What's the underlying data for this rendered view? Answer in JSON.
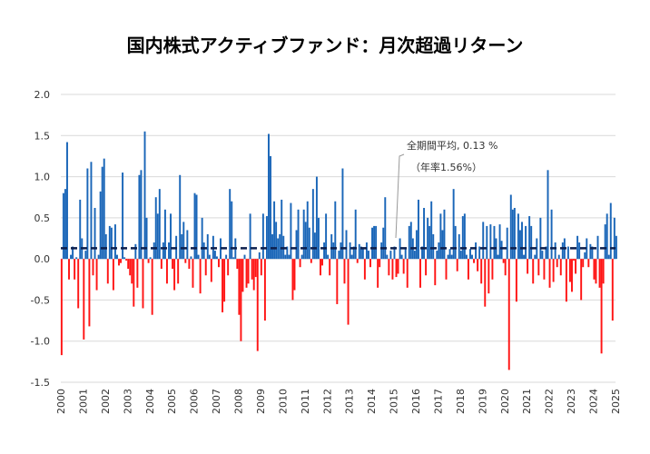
{
  "chart_data": {
    "type": "bar",
    "title": "国内株式アクティブファンド：月次超過リターン",
    "xlabel": "",
    "ylabel": "",
    "ylim": [
      -1.5,
      2.0
    ],
    "yticks": [
      "2.0",
      "1.5",
      "1.0",
      "0.5",
      "0.0",
      "-0.5",
      "-1.0",
      "-1.5"
    ],
    "xticks": [
      "2000",
      "2001",
      "2002",
      "2003",
      "2004",
      "2005",
      "2006",
      "2007",
      "2008",
      "2009",
      "2010",
      "2011",
      "2012",
      "2013",
      "2014",
      "2015",
      "2016",
      "2017",
      "2018",
      "2019",
      "2020",
      "2021",
      "2022",
      "2023",
      "2024",
      "2025"
    ],
    "grid": true,
    "frequency": "monthly",
    "colors": {
      "positive": "#1a66b8",
      "negative": "#ff1414",
      "average_line": "#0d1f4d"
    },
    "average": 0.13,
    "annotation": {
      "line1": "全期間平均, 0.13 %",
      "line2": "（年率1.56%）"
    },
    "monthly_by_year": [
      {
        "year": "2000",
        "values": [
          -1.17,
          0.8,
          0.85,
          1.42,
          -0.25,
          0.05,
          0.15,
          -0.25,
          0.02,
          -0.6,
          0.72,
          0.25
        ]
      },
      {
        "year": "2001",
        "values": [
          -0.98,
          0.1,
          1.1,
          -0.82,
          1.18,
          -0.2,
          0.62,
          -0.38,
          0.05,
          0.82,
          1.12,
          1.22
        ]
      },
      {
        "year": "2002",
        "values": [
          0.3,
          -0.3,
          0.4,
          0.38,
          -0.38,
          0.42,
          0.05,
          -0.08,
          -0.05,
          1.05,
          0.02,
          -0.02
        ]
      },
      {
        "year": "2003",
        "values": [
          -0.12,
          -0.2,
          -0.3,
          -0.58,
          0.18,
          -0.35,
          1.02,
          1.08,
          -0.6,
          1.55,
          0.5,
          -0.05
        ]
      },
      {
        "year": "2004",
        "values": [
          0.02,
          -0.68,
          0.2,
          0.75,
          0.55,
          0.85,
          -0.12,
          0.2,
          0.6,
          -0.3,
          0.2,
          0.55
        ]
      },
      {
        "year": "2005",
        "values": [
          -0.12,
          -0.38,
          0.28,
          -0.3,
          1.02,
          0.3,
          0.45,
          -0.05,
          0.35,
          -0.12,
          0.03,
          -0.35
        ]
      },
      {
        "year": "2006",
        "values": [
          0.8,
          0.78,
          0.05,
          -0.42,
          0.5,
          0.2,
          -0.2,
          0.3,
          0.05,
          -0.28,
          0.28,
          0.1
        ]
      },
      {
        "year": "2007",
        "values": [
          0.03,
          -0.1,
          0.25,
          -0.65,
          -0.52,
          0.05,
          -0.2,
          0.85,
          0.7,
          0.02,
          0.25,
          -0.12
        ]
      },
      {
        "year": "2008",
        "values": [
          -0.68,
          -1.0,
          -0.4,
          0.05,
          -0.35,
          -0.3,
          0.55,
          -0.25,
          -0.38,
          -0.22,
          -1.12,
          0.08
        ]
      },
      {
        "year": "2009",
        "values": [
          -0.2,
          0.55,
          -0.75,
          0.52,
          1.52,
          1.25,
          0.3,
          0.7,
          0.45,
          0.25,
          0.3,
          0.72
        ]
      },
      {
        "year": "2010",
        "values": [
          0.28,
          0.05,
          0.15,
          0.05,
          0.68,
          -0.5,
          -0.38,
          0.35,
          0.6,
          -0.1,
          0.05,
          0.6
        ]
      },
      {
        "year": "2011",
        "values": [
          0.45,
          0.7,
          0.38,
          -0.05,
          0.85,
          0.32,
          1.0,
          0.5,
          -0.2,
          -0.08,
          0.2,
          0.55
        ]
      },
      {
        "year": "2012",
        "values": [
          0.05,
          -0.2,
          0.3,
          0.2,
          0.7,
          -0.55,
          0.1,
          0.2,
          1.1,
          -0.3,
          0.35,
          -0.8
        ]
      },
      {
        "year": "2013",
        "values": [
          0.2,
          0.05,
          0.15,
          0.6,
          -0.05,
          0.18,
          0.15,
          0.12,
          -0.25,
          0.2,
          0.1,
          -0.1
        ]
      },
      {
        "year": "2014",
        "values": [
          0.38,
          0.4,
          0.4,
          -0.35,
          -0.1,
          0.2,
          0.38,
          0.75,
          0.05,
          -0.2,
          0.1,
          -0.25
        ]
      },
      {
        "year": "2015",
        "values": [
          0.15,
          -0.22,
          -0.18,
          0.25,
          0.05,
          -0.18,
          0.12,
          -0.35,
          0.4,
          0.45,
          0.25,
          0.1
        ]
      },
      {
        "year": "2016",
        "values": [
          0.35,
          0.72,
          -0.35,
          0.15,
          0.62,
          -0.2,
          0.5,
          0.4,
          0.7,
          0.3,
          -0.32,
          0.1
        ]
      },
      {
        "year": "2017",
        "values": [
          0.2,
          0.55,
          0.35,
          0.6,
          -0.25,
          0.05,
          0.12,
          0.05,
          0.85,
          0.4,
          -0.15,
          0.3
        ]
      },
      {
        "year": "2018",
        "values": [
          0.1,
          0.52,
          0.55,
          0.05,
          -0.25,
          0.12,
          0.05,
          -0.05,
          0.2,
          -0.15,
          0.15,
          -0.3
        ]
      },
      {
        "year": "2019",
        "values": [
          0.45,
          -0.58,
          0.4,
          -0.42,
          0.42,
          -0.25,
          0.4,
          0.25,
          0.05,
          0.42,
          0.22,
          -0.05
        ]
      },
      {
        "year": "2020",
        "values": [
          -0.2,
          0.38,
          -1.35,
          0.78,
          0.6,
          0.62,
          -0.52,
          0.55,
          0.35,
          0.45,
          0.05,
          0.4
        ]
      },
      {
        "year": "2021",
        "values": [
          -0.18,
          0.52,
          0.4,
          -0.3,
          0.05,
          0.25,
          -0.2,
          0.5,
          0.1,
          -0.25,
          0.15,
          1.08
        ]
      },
      {
        "year": "2022",
        "values": [
          -0.35,
          0.6,
          -0.28,
          0.2,
          -0.1,
          0.05,
          -0.2,
          0.2,
          0.25,
          -0.52,
          0.15,
          -0.28
        ]
      },
      {
        "year": "2023",
        "values": [
          -0.4,
          -0.02,
          -0.18,
          0.28,
          0.2,
          -0.5,
          -0.1,
          0.08,
          0.25,
          -0.1,
          0.18,
          0.15
        ]
      },
      {
        "year": "2024",
        "values": [
          -0.25,
          -0.3,
          0.28,
          -0.35,
          -1.15,
          -0.3,
          0.42,
          0.55,
          0.05,
          0.68,
          -0.75,
          0.5
        ]
      },
      {
        "year": "2025",
        "values": [
          0.28
        ]
      }
    ]
  }
}
